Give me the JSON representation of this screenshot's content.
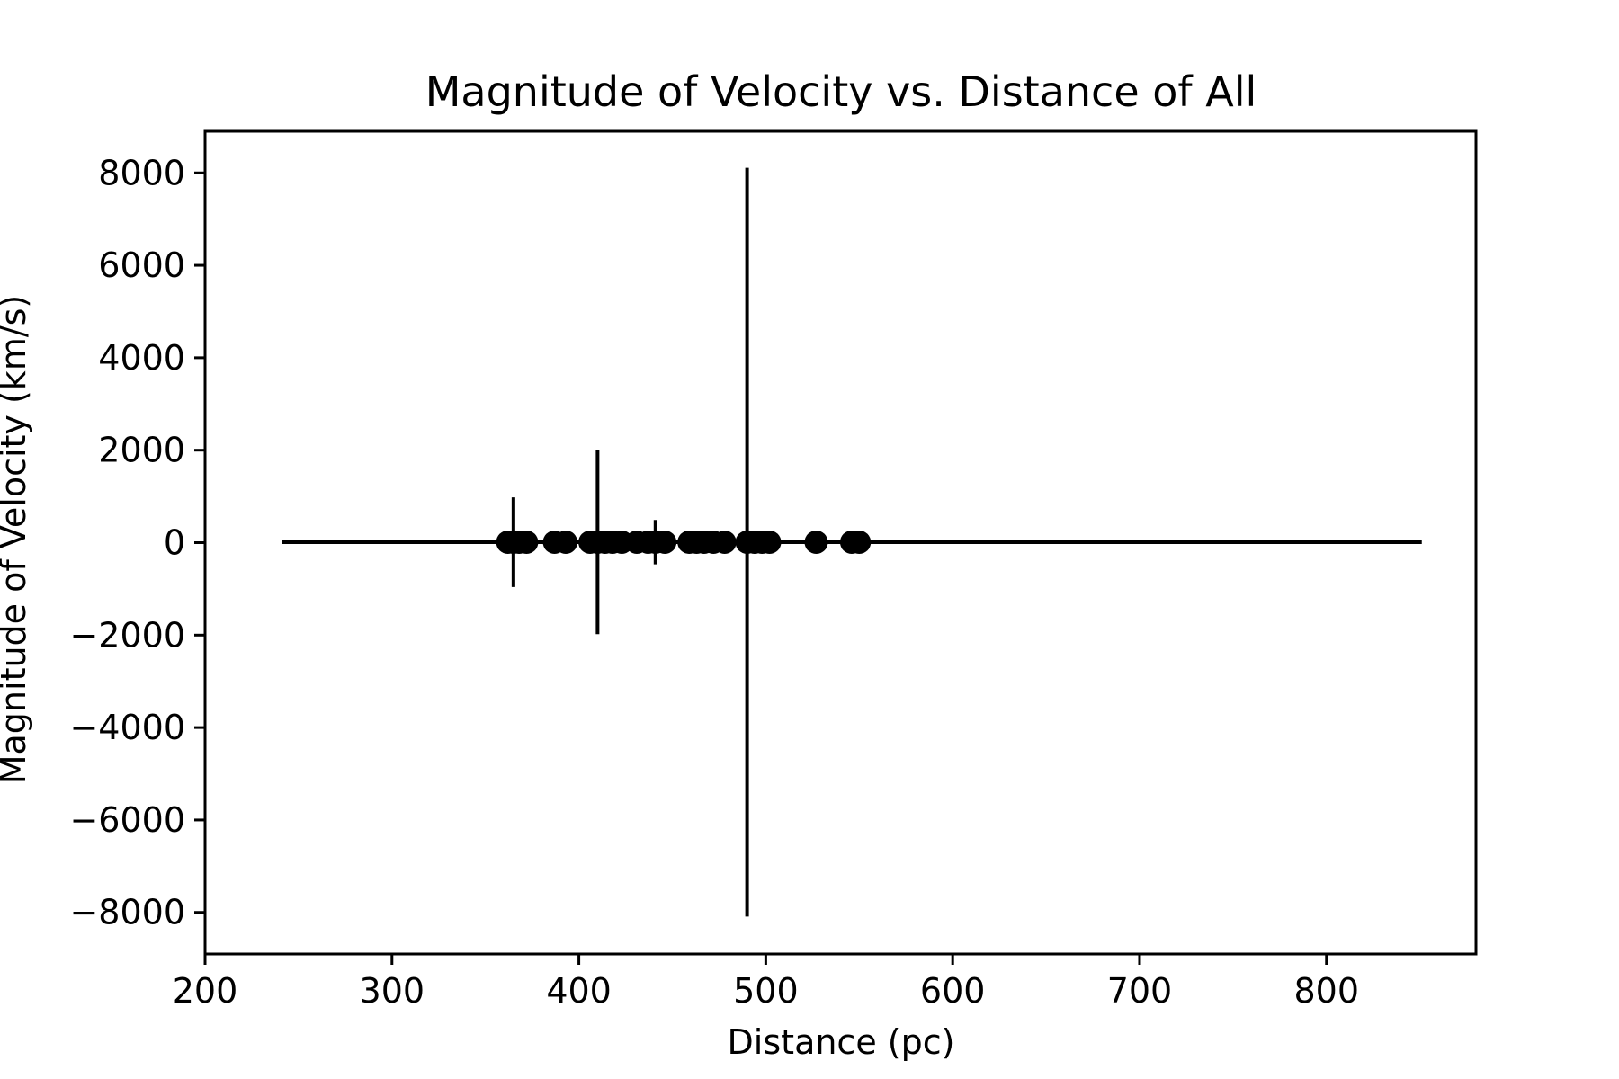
{
  "chart_data": {
    "type": "scatter",
    "title": "Magnitude of Velocity vs. Distance of All",
    "xlabel": "Distance (pc)",
    "ylabel": "Magnitude of Velocity (km/s)",
    "xlim": [
      200,
      880
    ],
    "ylim": [
      -8900,
      8900
    ],
    "x_ticks": [
      200,
      300,
      400,
      500,
      600,
      700,
      800
    ],
    "y_ticks": [
      8000,
      6000,
      4000,
      2000,
      0,
      -2000,
      -4000,
      -6000,
      -8000
    ],
    "x_tick_labels": [
      "200",
      "300",
      "400",
      "500",
      "600",
      "700",
      "800"
    ],
    "y_tick_labels": [
      "8000",
      "6000",
      "4000",
      "2000",
      "0",
      "−2000",
      "−4000",
      "−6000",
      "−8000"
    ],
    "grid": false,
    "legend": "none",
    "colors": {
      "marker": "#000000",
      "errorbar": "#000000",
      "axes": "#000000"
    },
    "points": [
      {
        "x": 362,
        "y": 10,
        "xerr": 110,
        "yerr": 30
      },
      {
        "x": 365,
        "y": 10,
        "xerr": 0,
        "yerr": 970
      },
      {
        "x": 368,
        "y": 10,
        "xerr": 30,
        "yerr": 30
      },
      {
        "x": 372,
        "y": 10,
        "xerr": 0,
        "yerr": 30
      },
      {
        "x": 387,
        "y": 10,
        "xerr": 0,
        "yerr": 30
      },
      {
        "x": 393,
        "y": 10,
        "xerr": 0,
        "yerr": 30
      },
      {
        "x": 406,
        "y": 10,
        "xerr": 0,
        "yerr": 30
      },
      {
        "x": 410,
        "y": 10,
        "xerr": 0,
        "yerr": 1990
      },
      {
        "x": 414,
        "y": 10,
        "xerr": 0,
        "yerr": 30
      },
      {
        "x": 418,
        "y": 10,
        "xerr": 0,
        "yerr": 30
      },
      {
        "x": 423,
        "y": 10,
        "xerr": 0,
        "yerr": 30
      },
      {
        "x": 431,
        "y": 10,
        "xerr": 0,
        "yerr": 30
      },
      {
        "x": 437,
        "y": 10,
        "xerr": 0,
        "yerr": 30
      },
      {
        "x": 441,
        "y": 10,
        "xerr": 0,
        "yerr": 480
      },
      {
        "x": 446,
        "y": 10,
        "xerr": 0,
        "yerr": 30
      },
      {
        "x": 459,
        "y": 10,
        "xerr": 0,
        "yerr": 30
      },
      {
        "x": 463,
        "y": 10,
        "xerr": 0,
        "yerr": 30
      },
      {
        "x": 467,
        "y": 10,
        "xerr": 0,
        "yerr": 30
      },
      {
        "x": 472,
        "y": 10,
        "xerr": 0,
        "yerr": 30
      },
      {
        "x": 478,
        "y": 10,
        "xerr": 0,
        "yerr": 30
      },
      {
        "x": 490,
        "y": 10,
        "xerr": 145,
        "yerr": 8100
      },
      {
        "x": 494,
        "y": 10,
        "xerr": 0,
        "yerr": 30
      },
      {
        "x": 498,
        "y": 10,
        "xerr": 235,
        "yerr": 30
      },
      {
        "x": 502,
        "y": 10,
        "xerr": 0,
        "yerr": 30
      },
      {
        "x": 527,
        "y": 10,
        "xerr": 0,
        "yerr": 30
      },
      {
        "x": 546,
        "y": 10,
        "xerr": 305,
        "yerr": 30
      },
      {
        "x": 550,
        "y": 10,
        "xerr": 0,
        "yerr": 30
      }
    ]
  }
}
